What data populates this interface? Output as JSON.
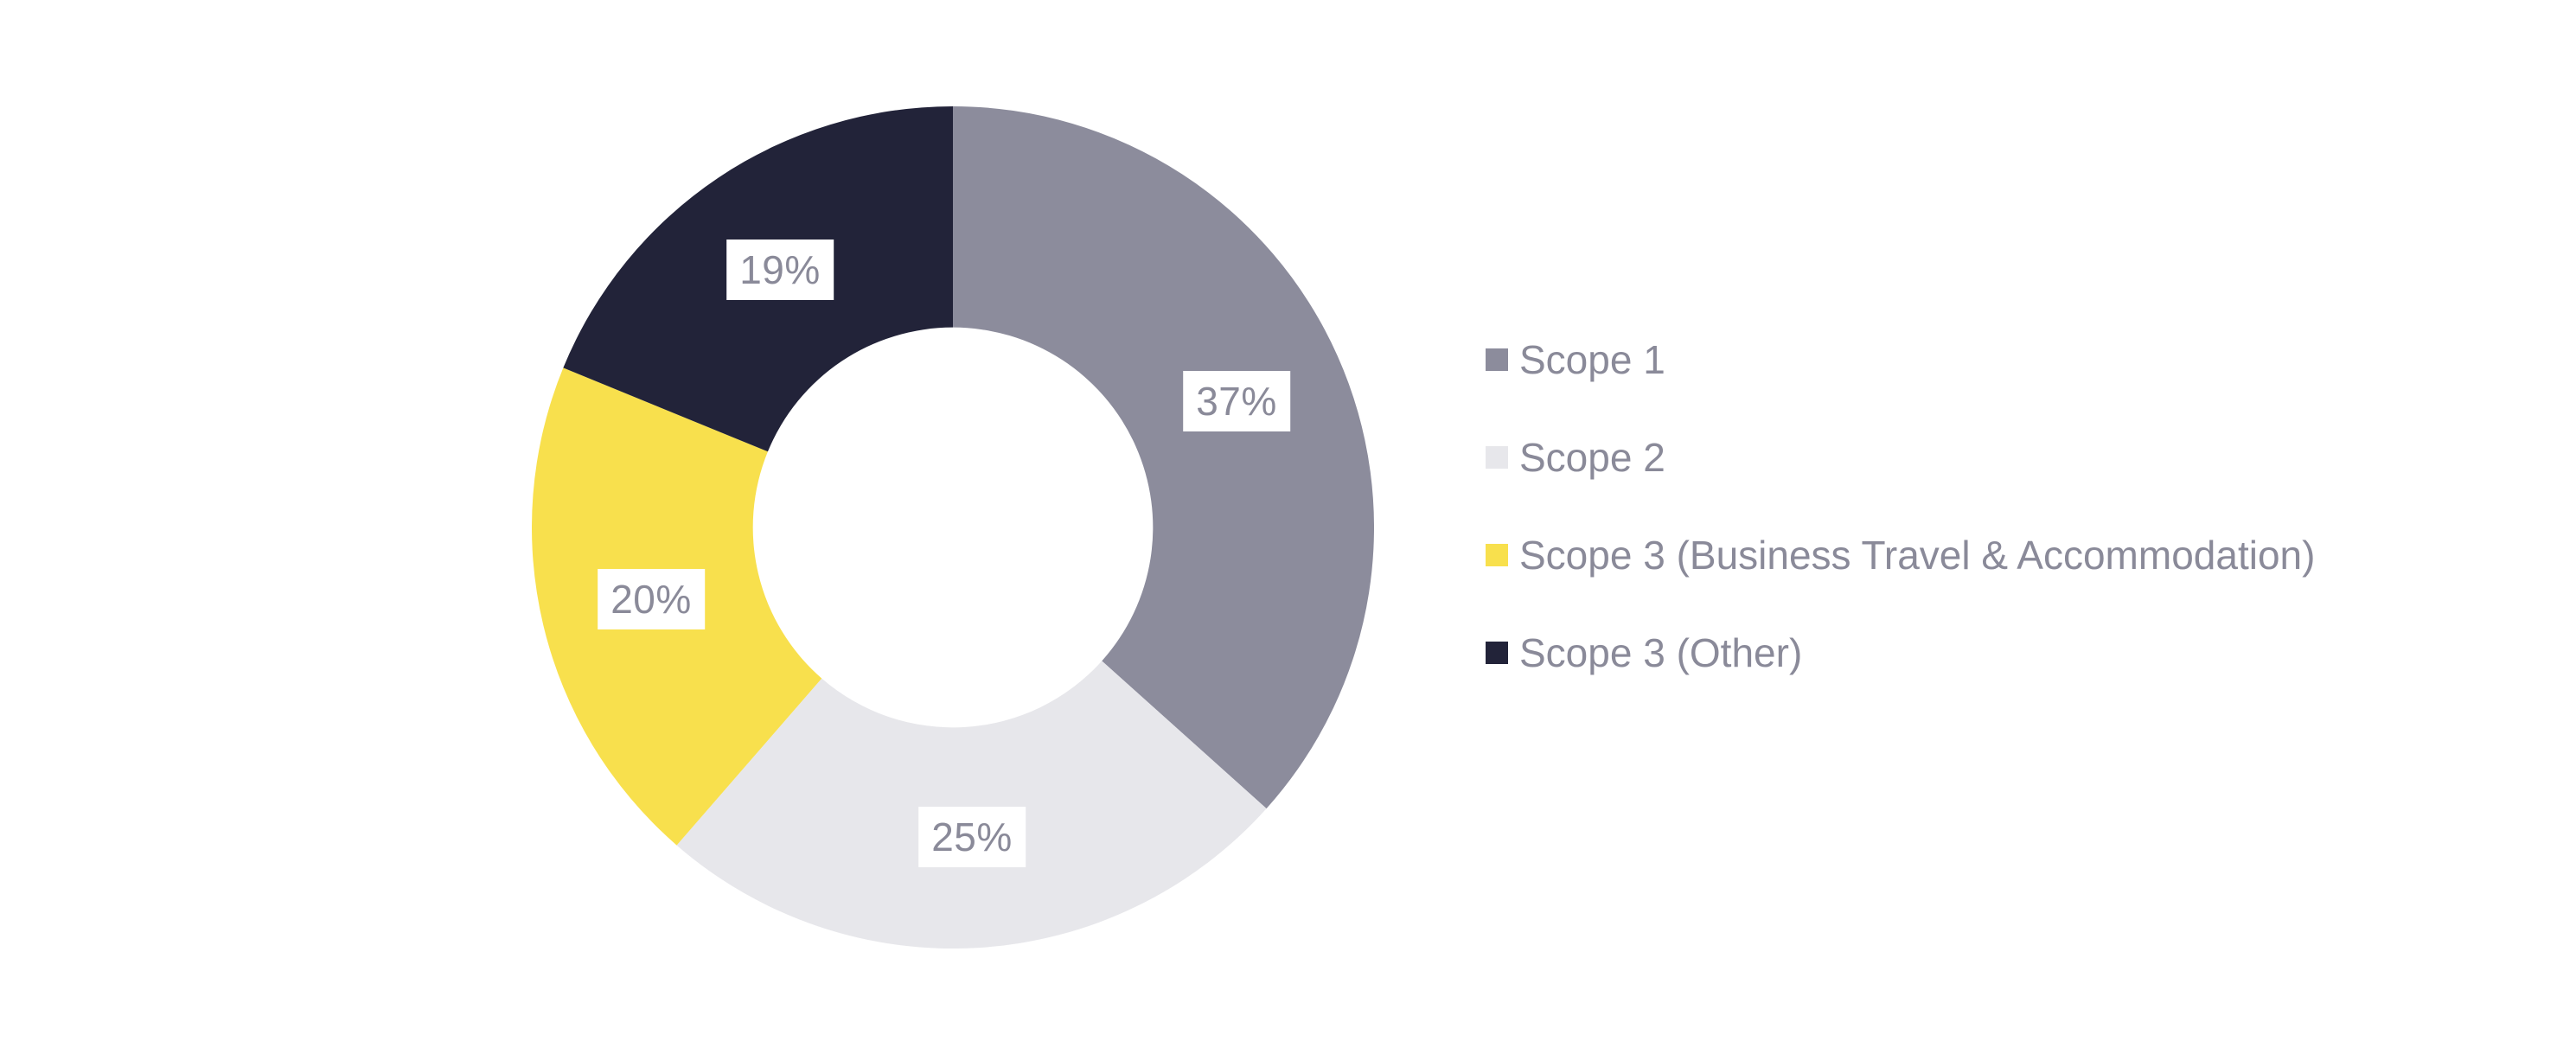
{
  "page": {
    "background": "#FFFFFF"
  },
  "chart_data": {
    "type": "pie",
    "subtype": "donut",
    "title": "",
    "unit": "%",
    "direction": "clockwise",
    "start_angle_deg": 0,
    "inner_radius_ratio": 0.475,
    "legend_position": "right",
    "legend_text_color": "#8A8A99",
    "value_label_text_color": "#8A8A99",
    "value_label_background": "#FFFFFF",
    "slices": [
      {
        "label": "Scope 1",
        "value": 37,
        "value_label": "37%",
        "color": "#8C8C9C"
      },
      {
        "label": "Scope 2",
        "value": 25,
        "value_label": "25%",
        "color": "#E7E7EB"
      },
      {
        "label": "Scope 3 (Business Travel & Accommodation)",
        "value": 20,
        "value_label": "20%",
        "color": "#F8E04D"
      },
      {
        "label": "Scope 3 (Other)",
        "value": 19,
        "value_label": "19%",
        "color": "#222339"
      }
    ]
  }
}
